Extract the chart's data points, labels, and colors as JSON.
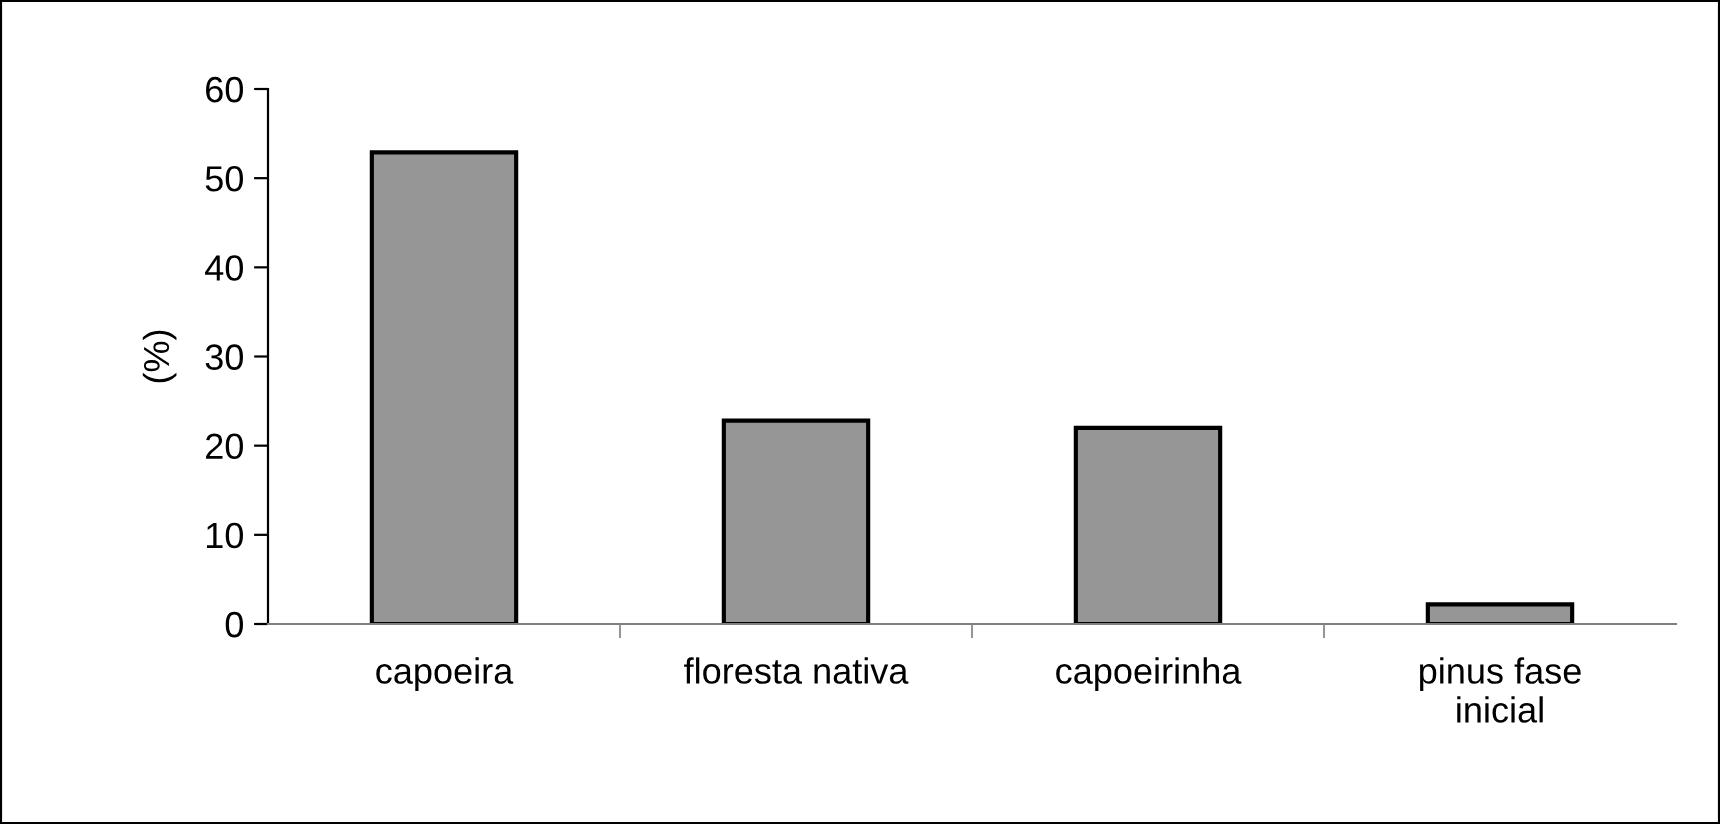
{
  "chart_data": {
    "type": "bar",
    "ylabel": "(%)",
    "categories": [
      "capoeira",
      "floresta nativa",
      "capoeirinha",
      "pinus fase\ninicial"
    ],
    "values": [
      52.9,
      22.8,
      22.0,
      2.2
    ],
    "color": "#969696",
    "ylim": [
      0,
      60
    ],
    "yticks": [
      0,
      10,
      20,
      30,
      40,
      50,
      60
    ],
    "grid": false
  }
}
